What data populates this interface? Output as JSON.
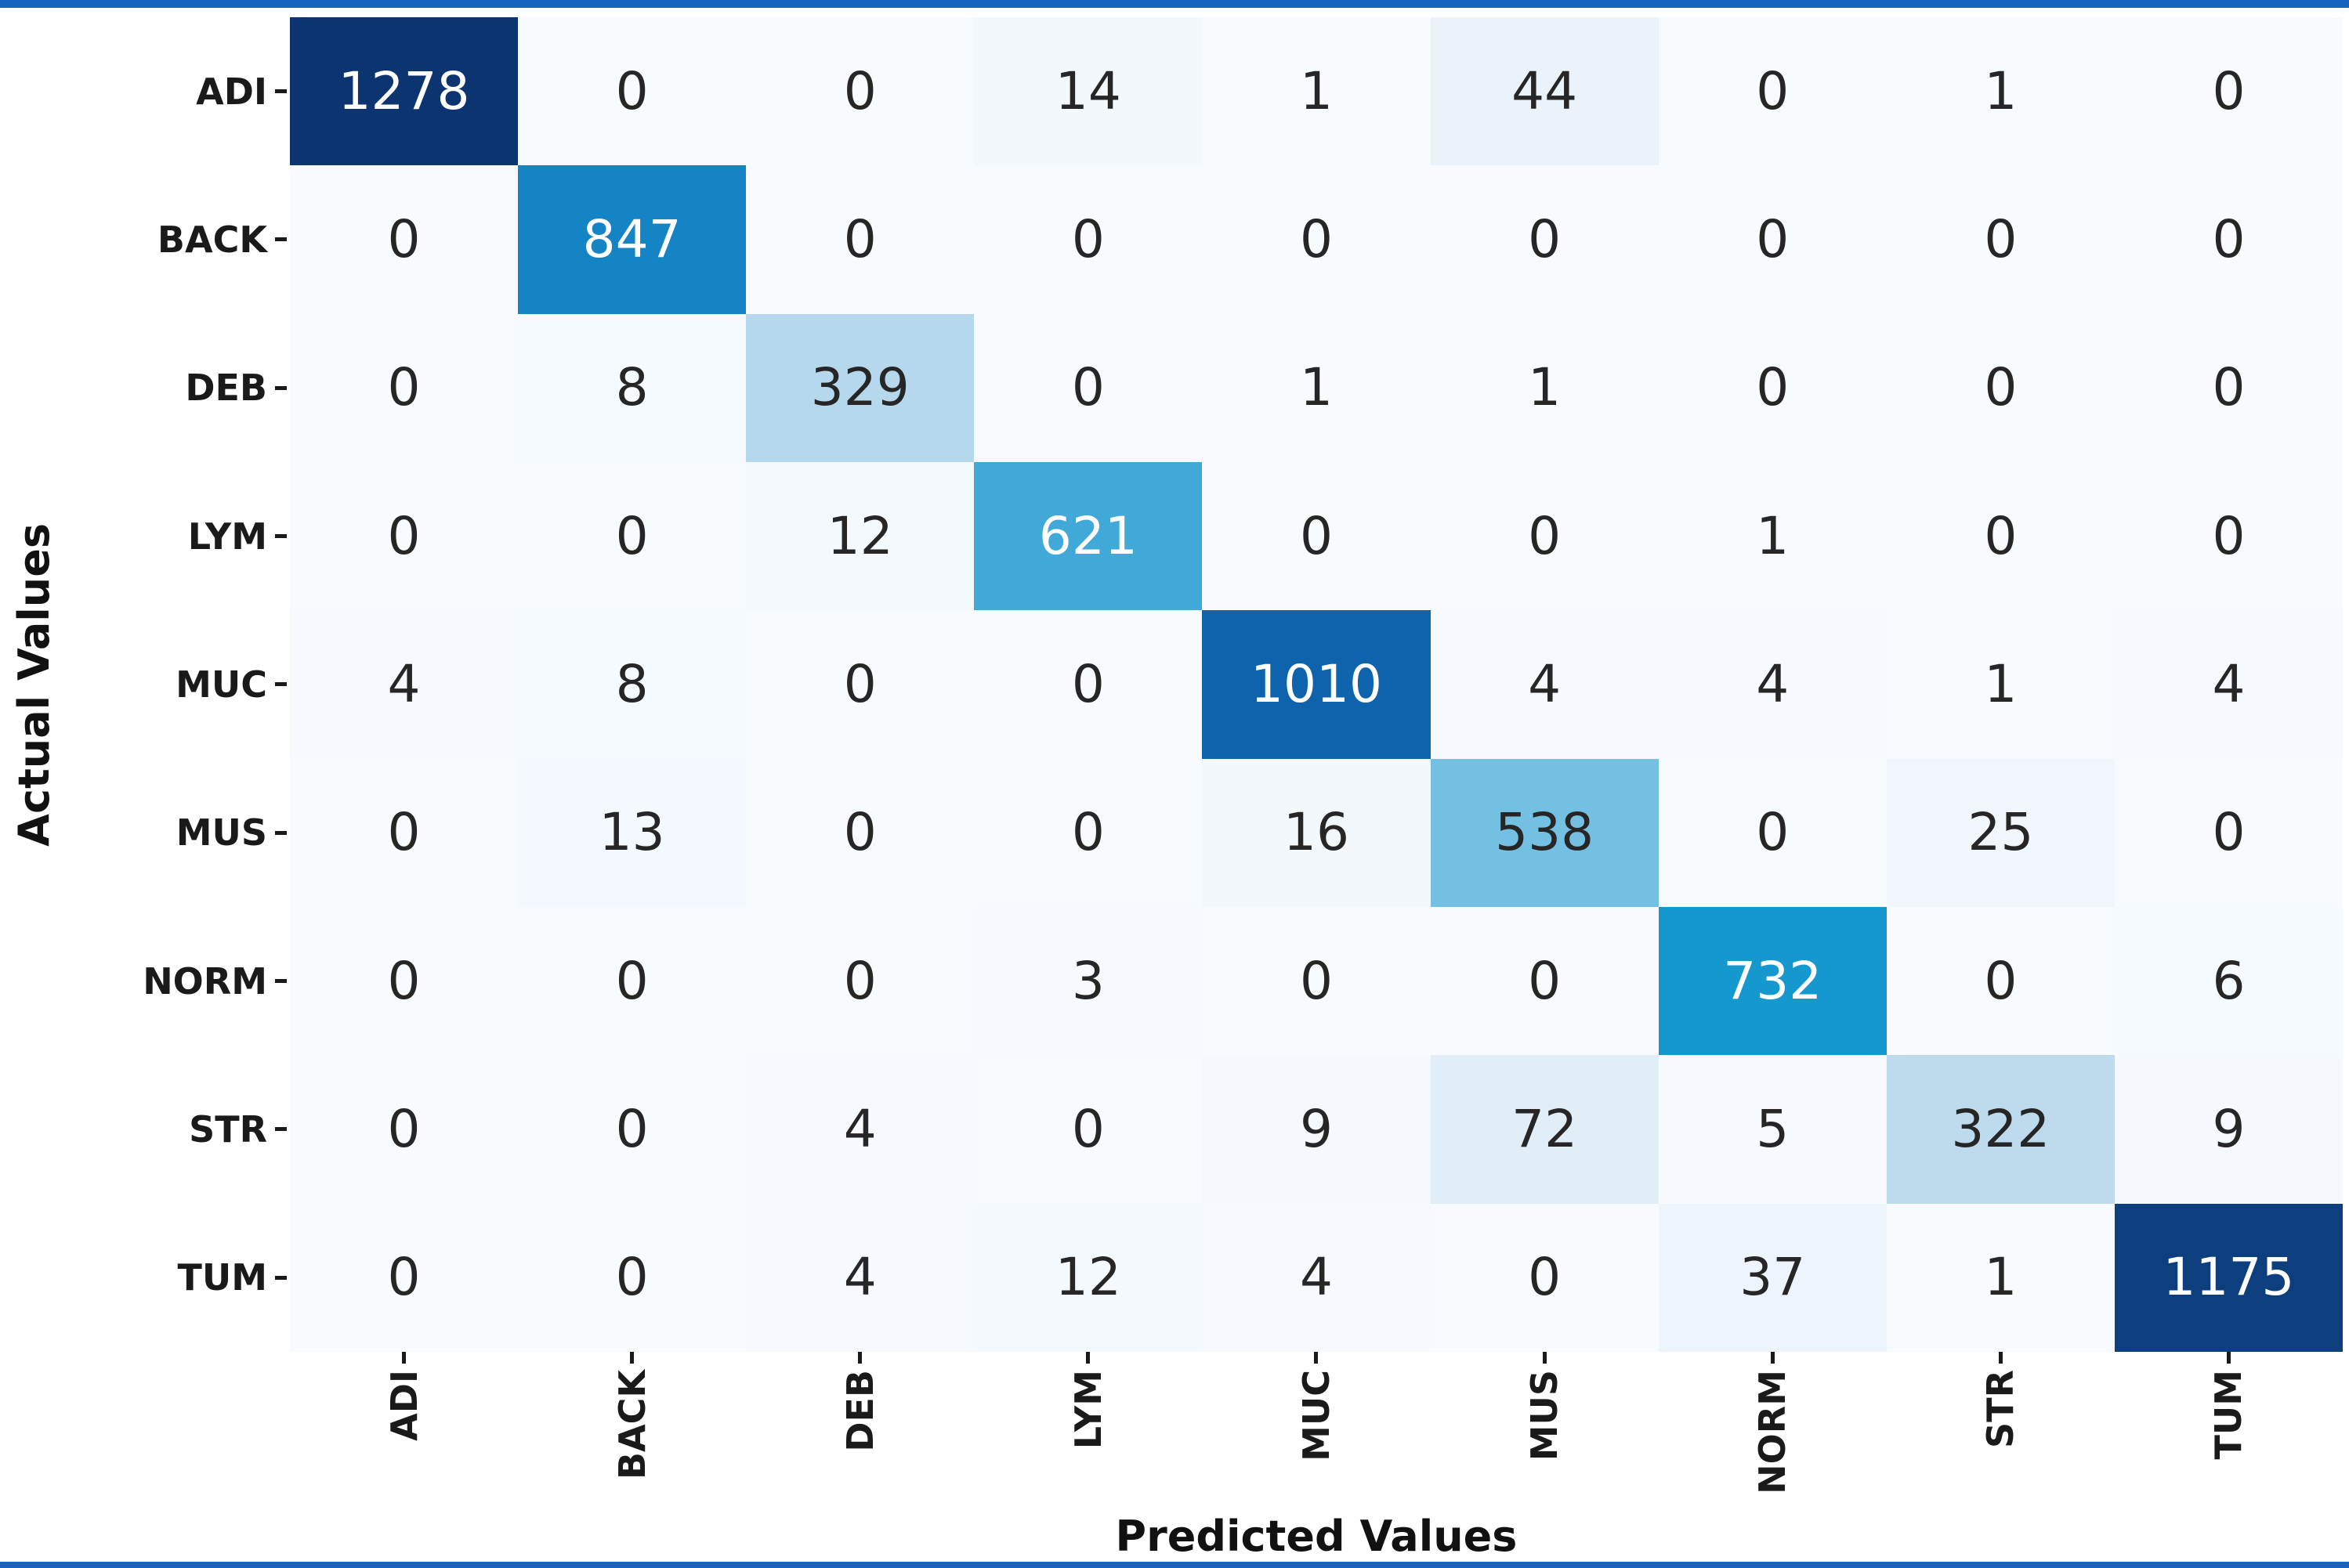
{
  "chart_data": {
    "type": "heatmap",
    "xlabel": "Predicted Values",
    "ylabel": "Actual Values",
    "categories": [
      "ADI",
      "BACK",
      "DEB",
      "LYM",
      "MUC",
      "MUS",
      "NORM",
      "STR",
      "TUM"
    ],
    "matrix": [
      [
        1278,
        0,
        0,
        14,
        1,
        44,
        0,
        1,
        0
      ],
      [
        0,
        847,
        0,
        0,
        0,
        0,
        0,
        0,
        0
      ],
      [
        0,
        8,
        329,
        0,
        1,
        1,
        0,
        0,
        0
      ],
      [
        0,
        0,
        12,
        621,
        0,
        0,
        1,
        0,
        0
      ],
      [
        4,
        8,
        0,
        0,
        1010,
        4,
        4,
        1,
        4
      ],
      [
        0,
        13,
        0,
        0,
        16,
        538,
        0,
        25,
        0
      ],
      [
        0,
        0,
        0,
        3,
        0,
        0,
        732,
        0,
        6
      ],
      [
        0,
        0,
        4,
        0,
        9,
        72,
        5,
        322,
        9
      ],
      [
        0,
        0,
        4,
        12,
        4,
        0,
        37,
        1,
        1175
      ]
    ],
    "vmin": 0,
    "vmax": 1278,
    "colormap": {
      "name": "Blues",
      "stops": [
        [
          0,
          "#f7fbff"
        ],
        [
          44,
          "#ebf3fa"
        ],
        [
          72,
          "#e1eef8"
        ],
        [
          322,
          "#bedbee"
        ],
        [
          329,
          "#b5d8ec"
        ],
        [
          538,
          "#74c0e2"
        ],
        [
          621,
          "#41a9d8"
        ],
        [
          732,
          "#1598ce"
        ],
        [
          847,
          "#1484c4"
        ],
        [
          1010,
          "#0f63ad"
        ],
        [
          1175,
          "#0d3e7e"
        ],
        [
          1278,
          "#0b3470"
        ]
      ]
    },
    "annotation_text_dark": "#262626",
    "annotation_text_light": "#ffffff",
    "light_text_threshold": 600,
    "grid": false,
    "legend": false,
    "edge_bar_color": "#1565c0"
  }
}
